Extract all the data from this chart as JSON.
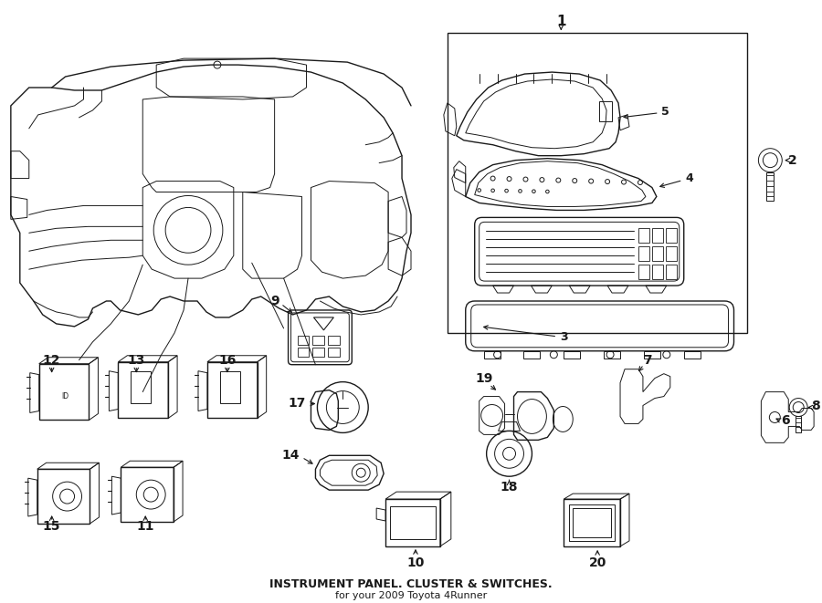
{
  "title": "INSTRUMENT PANEL. CLUSTER & SWITCHES.",
  "subtitle": "for your 2009 Toyota 4Runner",
  "bg_color": "#ffffff",
  "line_color": "#1a1a1a",
  "fig_width": 9.0,
  "fig_height": 6.61
}
